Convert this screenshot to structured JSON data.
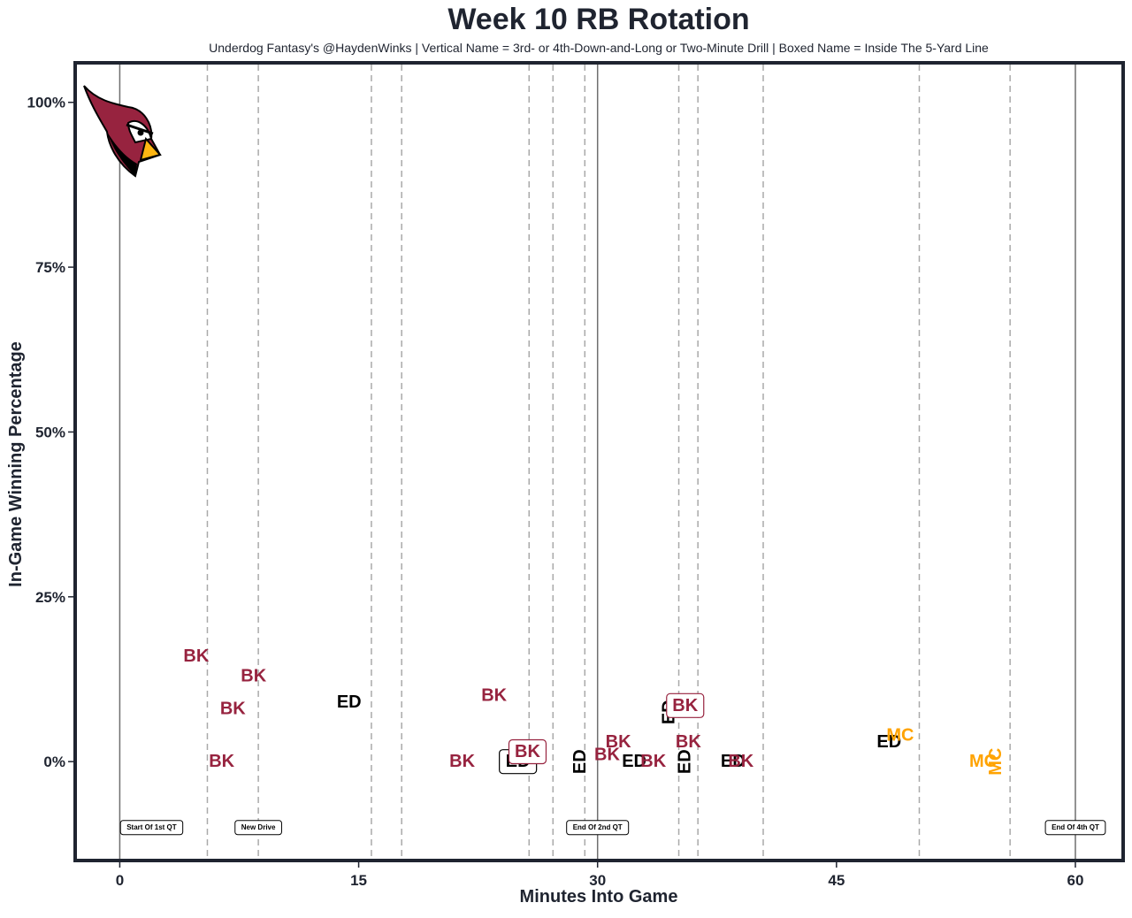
{
  "chart_data": {
    "type": "scatter",
    "title": "Week 10 RB Rotation",
    "subtitle": "Underdog Fantasy's @HaydenWinks | Vertical Name = 3rd- or 4th-Down-and-Long or Two-Minute Drill | Boxed Name = Inside The 5-Yard Line",
    "xlabel": "Minutes Into Game",
    "ylabel": "In-Game Winning Percentage",
    "xlim": [
      -2.8,
      63.0
    ],
    "ylim": [
      -15,
      106
    ],
    "x_ticks": [
      0,
      15,
      30,
      45,
      60
    ],
    "x_tick_labels": [
      "0",
      "15",
      "30",
      "45",
      "60"
    ],
    "y_ticks": [
      0,
      25,
      50,
      75,
      100
    ],
    "y_tick_labels": [
      "0%",
      "25%",
      "50%",
      "75%",
      "100%"
    ],
    "quarter_lines": [
      0,
      30,
      60
    ],
    "drive_lines": [
      5.5,
      8.7,
      15.8,
      17.7,
      25.7,
      27.2,
      29.2,
      35.1,
      36.3,
      40.4,
      50.2,
      55.9
    ],
    "annotations": [
      {
        "x": 2,
        "text": "Start Of 1st QT"
      },
      {
        "x": 8.7,
        "text": "New Drive"
      },
      {
        "x": 30,
        "text": "End Of 2nd QT"
      },
      {
        "x": 60,
        "text": "End Of 4th QT"
      }
    ],
    "players": [
      {
        "code": "BK",
        "color": "#97233f"
      },
      {
        "code": "ED",
        "color": "#000000"
      },
      {
        "code": "MC",
        "color": "#ffa300"
      }
    ],
    "points": [
      {
        "x": 4.8,
        "y": 16,
        "player": "BK",
        "vertical": false,
        "boxed": false
      },
      {
        "x": 8.4,
        "y": 13,
        "player": "BK",
        "vertical": false,
        "boxed": false
      },
      {
        "x": 7.1,
        "y": 8,
        "player": "BK",
        "vertical": false,
        "boxed": false
      },
      {
        "x": 6.4,
        "y": 0,
        "player": "BK",
        "vertical": false,
        "boxed": false
      },
      {
        "x": 14.4,
        "y": 9,
        "player": "ED",
        "vertical": false,
        "boxed": false
      },
      {
        "x": 23.5,
        "y": 10,
        "player": "BK",
        "vertical": false,
        "boxed": false
      },
      {
        "x": 21.5,
        "y": 0,
        "player": "BK",
        "vertical": false,
        "boxed": false
      },
      {
        "x": 25.0,
        "y": 0,
        "player": "ED",
        "vertical": false,
        "boxed": true
      },
      {
        "x": 25.6,
        "y": 1.5,
        "player": "BK",
        "vertical": false,
        "boxed": true
      },
      {
        "x": 28.9,
        "y": 0,
        "player": "ED",
        "vertical": true,
        "boxed": false
      },
      {
        "x": 31.3,
        "y": 3,
        "player": "BK",
        "vertical": false,
        "boxed": false
      },
      {
        "x": 30.6,
        "y": 1,
        "player": "BK",
        "vertical": false,
        "boxed": false
      },
      {
        "x": 32.3,
        "y": 0,
        "player": "ED",
        "vertical": false,
        "boxed": false
      },
      {
        "x": 33.5,
        "y": 0,
        "player": "BK",
        "vertical": false,
        "boxed": false
      },
      {
        "x": 34.5,
        "y": 7.5,
        "player": "ED",
        "vertical": true,
        "boxed": false
      },
      {
        "x": 35.5,
        "y": 8.5,
        "player": "BK",
        "vertical": false,
        "boxed": true
      },
      {
        "x": 35.7,
        "y": 3,
        "player": "BK",
        "vertical": false,
        "boxed": false
      },
      {
        "x": 35.5,
        "y": 0,
        "player": "ED",
        "vertical": true,
        "boxed": false
      },
      {
        "x": 38.5,
        "y": 0,
        "player": "ED",
        "vertical": false,
        "boxed": false
      },
      {
        "x": 39.0,
        "y": 0,
        "player": "BK",
        "vertical": false,
        "boxed": false
      },
      {
        "x": 48.3,
        "y": 3,
        "player": "ED",
        "vertical": false,
        "boxed": false
      },
      {
        "x": 49.0,
        "y": 4,
        "player": "MC",
        "vertical": false,
        "boxed": false
      },
      {
        "x": 54.2,
        "y": 0,
        "player": "MC",
        "vertical": false,
        "boxed": false
      },
      {
        "x": 55.0,
        "y": 0,
        "player": "MC",
        "vertical": true,
        "boxed": false
      }
    ]
  },
  "logo": {
    "name": "Arizona Cardinals logo",
    "primary": "#97233f",
    "beak": "#ffb612",
    "outline": "#000000"
  }
}
